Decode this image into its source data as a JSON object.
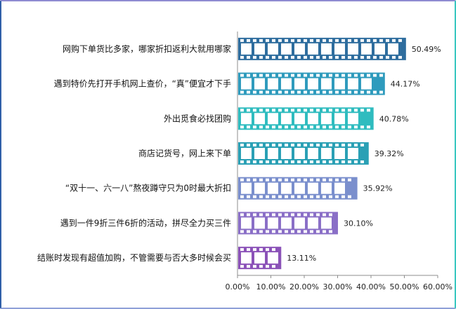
{
  "chart_data": {
    "type": "bar",
    "orientation": "horizontal",
    "categories": [
      "网购下单货比多家，哪家折扣返利大就用哪家",
      "遇到特价先打开手机网上查价，“真”便宜才下手",
      "外出觅食必找团购",
      "商店记货号，网上来下单",
      "“双十一、六一八”熬夜蹲守只为0时最大折扣",
      "遇到一件9折三件6折的活动，拼尽全力买三件",
      "结账时发现有超值加购，不管需要与否大多时候会买"
    ],
    "values": [
      50.49,
      44.17,
      40.78,
      39.32,
      35.92,
      30.1,
      13.11
    ],
    "value_labels": [
      "50.49%",
      "44.17%",
      "40.78%",
      "39.32%",
      "35.92%",
      "30.10%",
      "13.11%"
    ],
    "xlim": [
      0,
      60
    ],
    "ticks": [
      0,
      10,
      20,
      30,
      40,
      50,
      60
    ],
    "tick_labels": [
      "0.00%",
      "10.00%",
      "20.00%",
      "30.00%",
      "40.00%",
      "50.00%",
      "60.00%"
    ],
    "bar_colors": [
      "#2e6d9e",
      "#2f9bbd",
      "#2fbcbf",
      "#2aa0b5",
      "#7a8fcd",
      "#8a6fc7",
      "#8b52b8"
    ],
    "bar_style": "film-strip",
    "grid": false,
    "legend": "none"
  }
}
